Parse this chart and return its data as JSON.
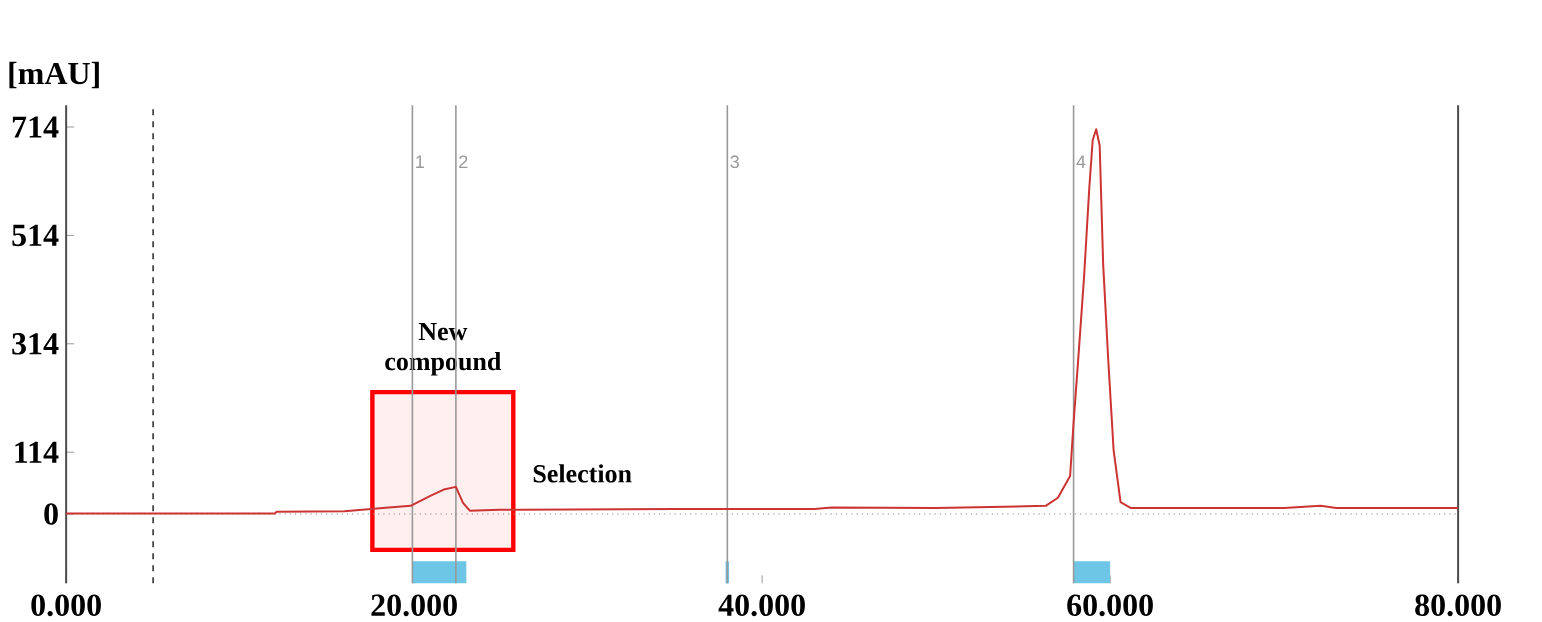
{
  "chart_data": {
    "type": "line",
    "ylabel": "[mAU]",
    "xlim": [
      0,
      80
    ],
    "ylim": [
      -128,
      754
    ],
    "xticks": [
      {
        "value": 0,
        "label": "0.000"
      },
      {
        "value": 20,
        "label": "20.000"
      },
      {
        "value": 40,
        "label": "40.000"
      },
      {
        "value": 60,
        "label": "60.000"
      },
      {
        "value": 80,
        "label": "80.000"
      }
    ],
    "yticks": [
      0,
      114,
      314,
      514,
      714
    ],
    "marker": "none",
    "line_style": "solid",
    "annotations": [
      "New compound",
      {
        "text": "1",
        "x": 19.9,
        "y": 650
      },
      {
        "text": "2",
        "x": 22.4,
        "y": 650
      },
      {
        "text": "3",
        "x": 38.0,
        "y": 650
      },
      {
        "text": "4",
        "x": 57.9,
        "y": 650
      }
    ],
    "ref_lines": [
      {
        "axis": "y",
        "value": 0,
        "color": "#888888",
        "line_style": "dotted"
      },
      {
        "axis": "x",
        "value": 5.0,
        "color": "#333333",
        "line_style": "dashed"
      },
      {
        "axis": "x",
        "value": 19.9,
        "color": "#999999",
        "line_style": "solid"
      },
      {
        "axis": "x",
        "value": 22.4,
        "color": "#999999",
        "line_style": "solid"
      },
      {
        "axis": "x",
        "value": 38.0,
        "color": "#999999",
        "line_style": "solid"
      },
      {
        "axis": "x",
        "value": 57.9,
        "color": "#999999",
        "line_style": "solid"
      }
    ],
    "bands": [
      {
        "axis": "x",
        "from": 17.6,
        "to": 25.7,
        "label": "Selection",
        "color": "#ff0000"
      },
      {
        "axis": "x",
        "from": 19.9,
        "to": 23.0,
        "color": "#6ec6e6"
      },
      {
        "axis": "x",
        "from": 37.9,
        "to": 38.1,
        "color": "#6ec6e6"
      },
      {
        "axis": "x",
        "from": 57.9,
        "to": 60.0,
        "color": "#6ec6e6"
      }
    ],
    "series": [
      {
        "color": "#cc3333",
        "x": [
          0,
          6,
          12,
          12.1,
          16,
          18.2,
          19.8,
          20.9,
          21.7,
          22.4,
          22.8,
          23.2,
          24.9,
          26,
          35,
          43,
          44,
          50,
          56.3,
          57.0,
          57.7,
          57.9,
          58.2,
          58.5,
          58.8,
          59.0,
          59.2,
          59.4,
          59.6,
          59.9,
          60.2,
          60.6,
          61.2,
          70,
          72.1,
          73,
          80
        ],
        "values": [
          1,
          1,
          1,
          4,
          5,
          11,
          15,
          33,
          45,
          50,
          21,
          6,
          8,
          8,
          9,
          9,
          12,
          11,
          15,
          30,
          70,
          168,
          300,
          436,
          600,
          690,
          710,
          680,
          461,
          280,
          118,
          22,
          11,
          11,
          15,
          11,
          11
        ]
      }
    ]
  }
}
